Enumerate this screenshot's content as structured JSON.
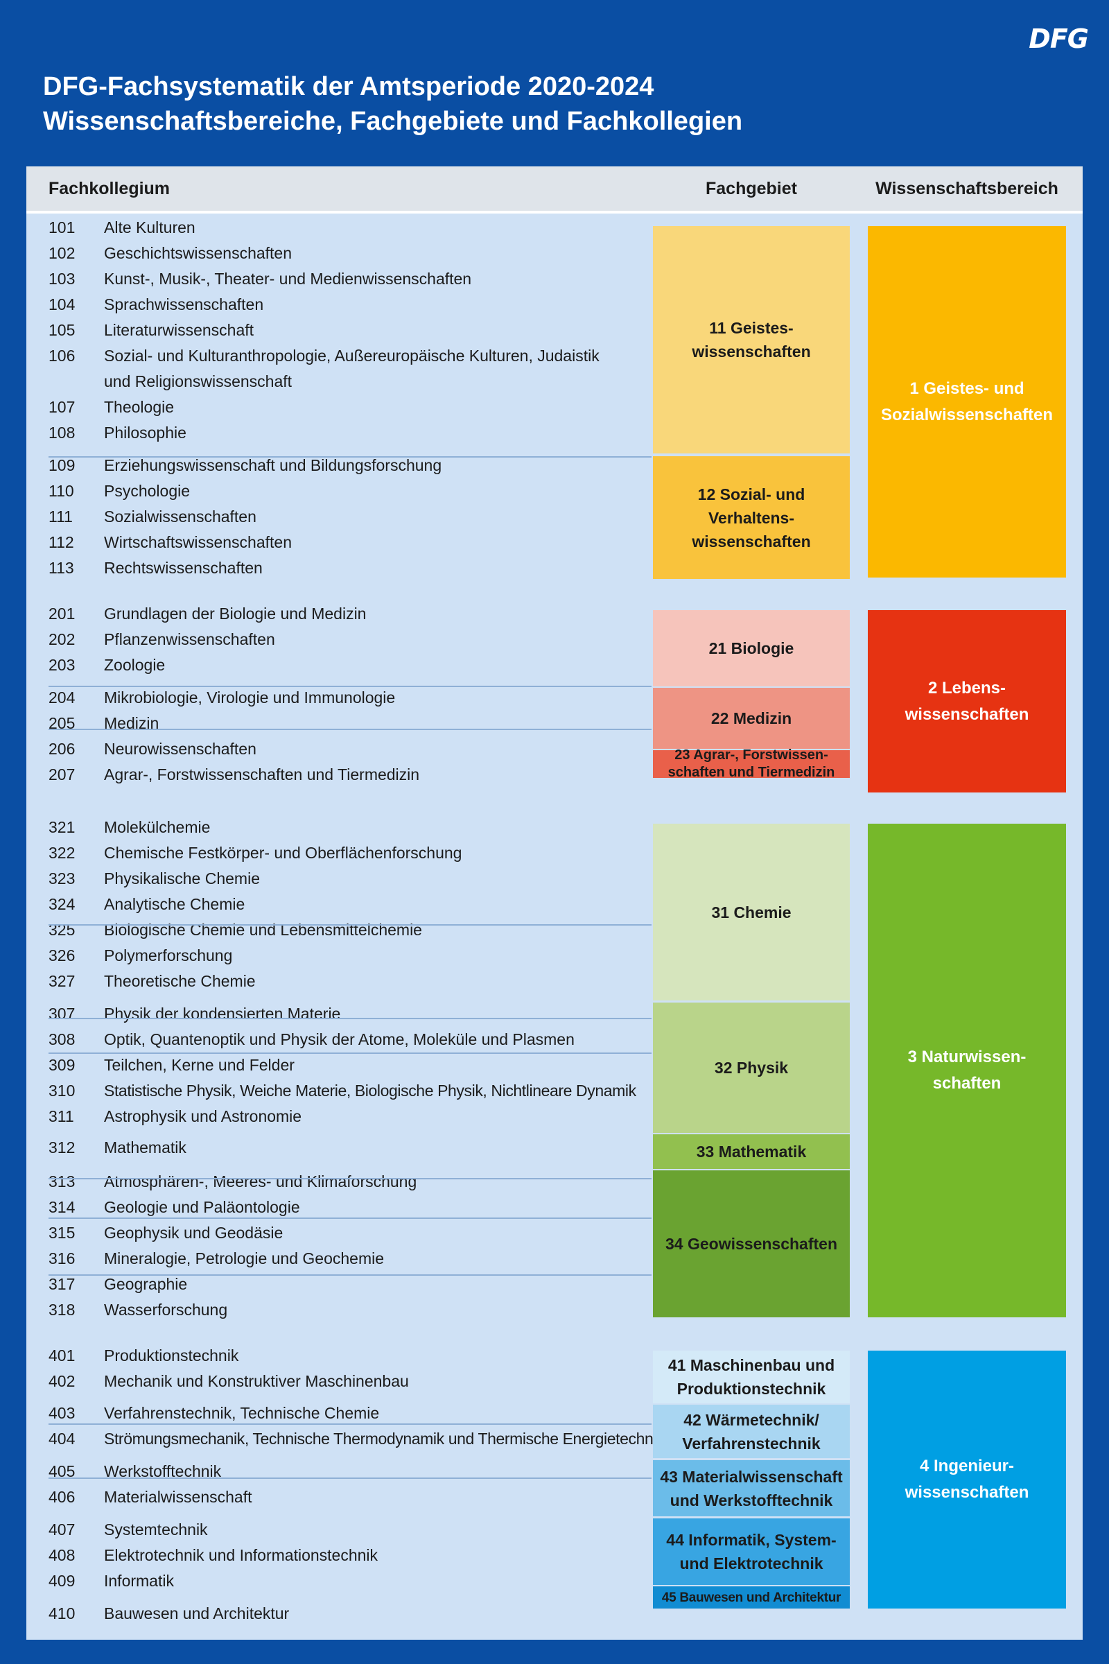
{
  "logo": "DFG",
  "title": {
    "line1": "DFG-Fachsystematik der Amtsperiode 2020-2024",
    "line2": "Wissenschaftsbereiche, Fachgebiete und Fachkollegien"
  },
  "headers": {
    "fachkollegium": "Fachkollegium",
    "fachgebiet": "Fachgebiet",
    "wissenschaftsbereich": "Wissenschaftsbereich"
  },
  "fachkollegien": [
    {
      "num": "101",
      "label": "Alte Kulturen"
    },
    {
      "num": "102",
      "label": "Geschichtswissenschaften"
    },
    {
      "num": "103",
      "label": "Kunst-, Musik-, Theater- und Medienwissenschaften"
    },
    {
      "num": "104",
      "label": "Sprachwissenschaften"
    },
    {
      "num": "105",
      "label": "Literaturwissenschaft"
    },
    {
      "num": "106",
      "label": "Sozial- und Kulturanthropologie, Außereuropäische Kulturen, Judaistik"
    },
    {
      "num": "",
      "label": "und Religionswissenschaft"
    },
    {
      "num": "107",
      "label": "Theologie"
    },
    {
      "num": "108",
      "label": "Philosophie"
    },
    {
      "num": "109",
      "label": "Erziehungswissenschaft und Bildungsforschung"
    },
    {
      "num": "110",
      "label": "Psychologie"
    },
    {
      "num": "111",
      "label": "Sozialwissenschaften"
    },
    {
      "num": "112",
      "label": "Wirtschaftswissenschaften"
    },
    {
      "num": "113",
      "label": "Rechtswissenschaften"
    },
    {
      "num": "201",
      "label": "Grundlagen der Biologie und Medizin"
    },
    {
      "num": "202",
      "label": "Pflanzenwissenschaften"
    },
    {
      "num": "203",
      "label": "Zoologie"
    },
    {
      "num": "204",
      "label": "Mikrobiologie, Virologie und Immunologie"
    },
    {
      "num": "205",
      "label": "Medizin"
    },
    {
      "num": "206",
      "label": "Neurowissenschaften"
    },
    {
      "num": "207",
      "label": "Agrar-, Forstwissenschaften und Tiermedizin"
    },
    {
      "num": "321",
      "label": "Molekülchemie"
    },
    {
      "num": "322",
      "label": "Chemische Festkörper- und Oberflächenforschung"
    },
    {
      "num": "323",
      "label": "Physikalische Chemie"
    },
    {
      "num": "324",
      "label": "Analytische Chemie"
    },
    {
      "num": "325",
      "label": "Biologische Chemie und Lebensmittelchemie"
    },
    {
      "num": "326",
      "label": "Polymerforschung"
    },
    {
      "num": "327",
      "label": "Theoretische Chemie"
    },
    {
      "num": "307",
      "label": "Physik der kondensierten Materie"
    },
    {
      "num": "308",
      "label": "Optik, Quantenoptik und Physik der Atome, Moleküle und Plasmen"
    },
    {
      "num": "309",
      "label": "Teilchen, Kerne und Felder"
    },
    {
      "num": "310",
      "label": "Statistische Physik, Weiche Materie, Biologische Physik, Nichtlineare Dynamik"
    },
    {
      "num": "311",
      "label": "Astrophysik und Astronomie"
    },
    {
      "num": "312",
      "label": "Mathematik"
    },
    {
      "num": "313",
      "label": "Atmosphären-, Meeres- und Klimaforschung"
    },
    {
      "num": "314",
      "label": "Geologie und Paläontologie"
    },
    {
      "num": "315",
      "label": "Geophysik und Geodäsie"
    },
    {
      "num": "316",
      "label": "Mineralogie, Petrologie und Geochemie"
    },
    {
      "num": "317",
      "label": "Geographie"
    },
    {
      "num": "318",
      "label": "Wasserforschung"
    },
    {
      "num": "401",
      "label": "Produktionstechnik"
    },
    {
      "num": "402",
      "label": "Mechanik und Konstruktiver Maschinenbau"
    },
    {
      "num": "403",
      "label": "Verfahrenstechnik, Technische Chemie"
    },
    {
      "num": "404",
      "label": "Strömungsmechanik, Technische Thermodynamik und Thermische Energietechnik"
    },
    {
      "num": "405",
      "label": "Werkstofftechnik"
    },
    {
      "num": "406",
      "label": "Materialwissenschaft"
    },
    {
      "num": "407",
      "label": "Systemtechnik"
    },
    {
      "num": "408",
      "label": "Elektrotechnik und Informationstechnik"
    },
    {
      "num": "409",
      "label": "Informatik"
    },
    {
      "num": "410",
      "label": "Bauwesen und Architektur"
    }
  ],
  "fachgebiete": [
    {
      "lines": [
        "11 Geistes-",
        "wissenschaften"
      ],
      "color": "#f9d77a"
    },
    {
      "lines": [
        "12 Sozial- und",
        "Verhaltens-",
        "wissenschaften"
      ],
      "color": "#f9c33c"
    },
    {
      "lines": [
        "21 Biologie"
      ],
      "color": "#f6c4bb"
    },
    {
      "lines": [
        "22 Medizin"
      ],
      "color": "#ee9484"
    },
    {
      "lines": [
        "23 Agrar-, Forstwissen-",
        "schaften und Tiermedizin"
      ],
      "color": "#e9604a"
    },
    {
      "lines": [
        "31 Chemie"
      ],
      "color": "#d6e5bd"
    },
    {
      "lines": [
        "32 Physik"
      ],
      "color": "#b9d48a"
    },
    {
      "lines": [
        "33 Mathematik"
      ],
      "color": "#92c04f"
    },
    {
      "lines": [
        "34 Geowissenschaften"
      ],
      "color": "#6aa331"
    },
    {
      "lines": [
        "41 Maschinenbau und",
        "Produktionstechnik"
      ],
      "color": "#d4eaf8"
    },
    {
      "lines": [
        "42 Wärmetechnik/",
        "Verfahrenstechnik"
      ],
      "color": "#a9d6f2"
    },
    {
      "lines": [
        "43 Materialwissenschaft",
        "und Werkstofftechnik"
      ],
      "color": "#6bbce9"
    },
    {
      "lines": [
        "44 Informatik, System-",
        "und Elektrotechnik"
      ],
      "color": "#38a5e2"
    },
    {
      "lines": [
        "45 Bauwesen und Architektur"
      ],
      "color": "#118cd2"
    }
  ],
  "wissenschaftsbereiche": [
    {
      "lines": [
        "1 Geistes- und",
        "Sozialwissenschaften"
      ],
      "color": "#fbb800"
    },
    {
      "lines": [
        "2 Lebens-",
        "wissenschaften"
      ],
      "color": "#e63312"
    },
    {
      "lines": [
        "3 Naturwissen-",
        "schaften"
      ],
      "color": "#76b82a"
    },
    {
      "lines": [
        "4 Ingenieur-",
        "wissenschaften"
      ],
      "color": "#009fe3"
    }
  ]
}
